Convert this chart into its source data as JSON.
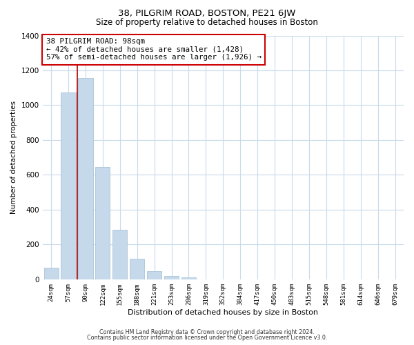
{
  "title": "38, PILGRIM ROAD, BOSTON, PE21 6JW",
  "subtitle": "Size of property relative to detached houses in Boston",
  "xlabel": "Distribution of detached houses by size in Boston",
  "ylabel": "Number of detached properties",
  "bar_labels": [
    "24sqm",
    "57sqm",
    "90sqm",
    "122sqm",
    "155sqm",
    "188sqm",
    "221sqm",
    "253sqm",
    "286sqm",
    "319sqm",
    "352sqm",
    "384sqm",
    "417sqm",
    "450sqm",
    "483sqm",
    "515sqm",
    "548sqm",
    "581sqm",
    "614sqm",
    "646sqm",
    "679sqm"
  ],
  "bar_values": [
    65,
    1075,
    1155,
    645,
    285,
    120,
    48,
    20,
    12,
    0,
    0,
    0,
    0,
    0,
    0,
    0,
    0,
    0,
    0,
    0,
    0
  ],
  "bar_color": "#c5d9ea",
  "bar_edge_color": "#a0bdd4",
  "highlight_line_color": "#aa0000",
  "annotation_text": "38 PILGRIM ROAD: 98sqm\n← 42% of detached houses are smaller (1,428)\n57% of semi-detached houses are larger (1,926) →",
  "annotation_box_color": "#ffffff",
  "annotation_box_edge": "#cc0000",
  "ylim": [
    0,
    1400
  ],
  "yticks": [
    0,
    200,
    400,
    600,
    800,
    1000,
    1200,
    1400
  ],
  "footer_line1": "Contains HM Land Registry data © Crown copyright and database right 2024.",
  "footer_line2": "Contains public sector information licensed under the Open Government Licence v3.0.",
  "background_color": "#ffffff",
  "grid_color": "#c8daea"
}
